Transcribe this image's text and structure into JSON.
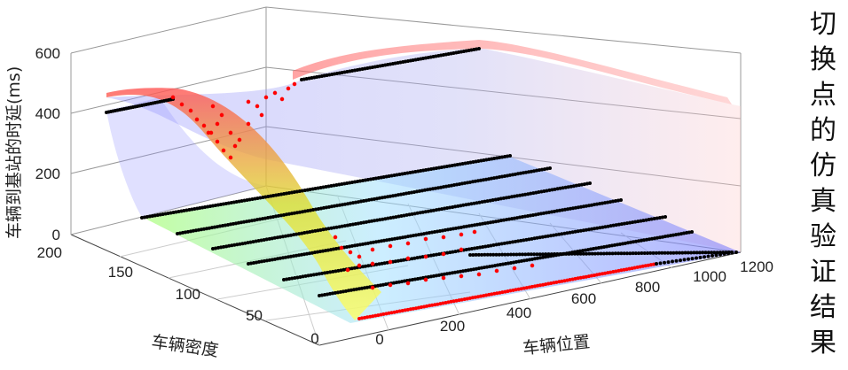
{
  "chart_data": {
    "type": "surface3d",
    "title_vertical": "切换点的仿真验证结果",
    "xlabel": "车辆位置",
    "ylabel": "车辆密度",
    "zlabel": "车辆到基站的时延(ms)",
    "x_ticks": [
      "0",
      "200",
      "400",
      "600",
      "800",
      "1000",
      "1200"
    ],
    "y_ticks": [
      "0",
      "50",
      "100",
      "150",
      "200"
    ],
    "z_ticks": [
      "0",
      "200",
      "400",
      "600"
    ],
    "xlim": [
      0,
      1200
    ],
    "ylim": [
      0,
      200
    ],
    "zlim": [
      0,
      600
    ],
    "grid": true,
    "colors": {
      "surface_low": "#7777ff",
      "surface_high": "#ff3333",
      "path_surface": "#dddd22",
      "dots_black": "#000000",
      "dots_red": "#ff0000"
    },
    "black_dot_lines": [
      {
        "density": 25,
        "delay": 0
      },
      {
        "density": 50,
        "delay": 0
      },
      {
        "density": 75,
        "delay": 0
      },
      {
        "density": 100,
        "delay": 0
      },
      {
        "density": 125,
        "delay": 0
      },
      {
        "density": 150,
        "delay": 0
      },
      {
        "density": 175,
        "delay": 0
      },
      {
        "density": 200,
        "delay": 400
      }
    ],
    "red_dot_line": {
      "density": 0,
      "delay": 0
    }
  }
}
